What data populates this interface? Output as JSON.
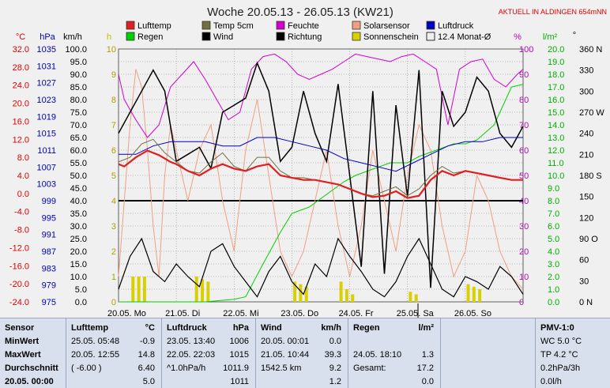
{
  "title": "Woche 20.05.13 - 26.05.13 (KW21)",
  "subtitle": "AKTUELL IN ALDINGEN 654mNN",
  "colors": {
    "lufttemp": "#e02020",
    "temp5cm": "#707040",
    "feuchte": "#d000d0",
    "solarsensor": "#f0a080",
    "luftdruck": "#0000c0",
    "regen": "#00d000",
    "wind": "#000000",
    "richtung": "#000000",
    "sonnenschein": "#d8d000",
    "monat_avg": "#4040a0",
    "grid": "#808080",
    "axis_c": "#e00000",
    "axis_hpa": "#0000c0",
    "axis_kmh": "#000000",
    "axis_h": "#c0c000",
    "axis_pct": "#c000c0",
    "axis_lm2": "#00b000"
  },
  "legend": [
    {
      "label": "Lufttemp",
      "color": "#e02020"
    },
    {
      "label": "Temp 5cm",
      "color": "#707040"
    },
    {
      "label": "Feuchte",
      "color": "#d000d0"
    },
    {
      "label": "Solarsensor",
      "color": "#f0a080"
    },
    {
      "label": "Luftdruck",
      "color": "#0000c0"
    },
    {
      "label": "Regen",
      "color": "#00d000"
    },
    {
      "label": "Wind",
      "color": "#000000"
    },
    {
      "label": "Richtung",
      "color": "#000000"
    },
    {
      "label": "Sonnenschein",
      "color": "#d8d000"
    },
    {
      "label": "12.4 Monat-Ø",
      "color": "#4040a0"
    }
  ],
  "chart_data": {
    "type": "line",
    "axis_units": {
      "left1": "°C",
      "left2": "hPa",
      "left3": "km/h",
      "left4": "h",
      "right1": "%",
      "right2": "l/m²",
      "right3": "°"
    },
    "x_ticks": [
      "20.05. Mo",
      "21.05. Di",
      "22.05. Mi",
      "23.05. Do",
      "24.05. Fr",
      "25.05. Sa",
      "26.05. So"
    ],
    "axis_c": [
      "32.0",
      "28.0",
      "24.0",
      "20.0",
      "16.0",
      "12.0",
      "8.0",
      "4.0",
      "0.0",
      "-4.0",
      "-8.0",
      "-12.0",
      "-16.0",
      "-20.0",
      "-24.0"
    ],
    "axis_hpa": [
      "1035",
      "1031",
      "1027",
      "1023",
      "1019",
      "1015",
      "1011",
      "1007",
      "1003",
      "999",
      "995",
      "991",
      "987",
      "983",
      "979",
      "975"
    ],
    "axis_kmh": [
      "100.0",
      "95.0",
      "90.0",
      "85.0",
      "80.0",
      "75.0",
      "70.0",
      "65.0",
      "60.0",
      "55.0",
      "50.0",
      "45.0",
      "40.0",
      "35.0",
      "30.0",
      "25.0",
      "20.0",
      "15.0",
      "10.0",
      "5.0",
      "0.0"
    ],
    "axis_h": [
      "10",
      "9",
      "8",
      "7",
      "6",
      "5",
      "4",
      "3",
      "2",
      "1",
      "0"
    ],
    "axis_pct": [
      "100",
      "90",
      "80",
      "70",
      "60",
      "50",
      "40",
      "30",
      "20",
      "10",
      "0"
    ],
    "axis_lm2": [
      "20.0",
      "19.0",
      "18.0",
      "17.0",
      "16.0",
      "15.0",
      "14.0",
      "13.0",
      "12.0",
      "11.0",
      "10.0",
      "9.0",
      "8.0",
      "7.0",
      "6.0",
      "5.0",
      "4.0",
      "3.0",
      "2.0",
      "1.0",
      "0.0"
    ],
    "axis_dir": [
      "360 N",
      "330",
      "300",
      "270 W",
      "240",
      "210",
      "180 S",
      "150",
      "120",
      "90 O",
      "60",
      "30",
      "0 N"
    ],
    "x_range": [
      0,
      7
    ],
    "monat_avg_level_kmh": 40,
    "series": [
      {
        "name": "Lufttemp",
        "unit": "°C",
        "x": [
          0,
          0.1,
          0.3,
          0.5,
          0.7,
          0.9,
          1.0,
          1.2,
          1.4,
          1.6,
          1.8,
          2.0,
          2.2,
          2.4,
          2.6,
          2.8,
          3.0,
          3.2,
          3.4,
          3.6,
          3.8,
          4.0,
          4.2,
          4.4,
          4.6,
          4.8,
          5.0,
          5.2,
          5.4,
          5.6,
          5.8,
          6.0,
          6.2,
          6.4,
          6.6,
          6.8,
          7.0
        ],
        "y": [
          6.5,
          6.0,
          8.0,
          9.5,
          8.5,
          7.0,
          6.5,
          5.0,
          4.0,
          5.5,
          6.5,
          5.5,
          5.0,
          6.0,
          6.5,
          4.0,
          3.5,
          3.0,
          3.0,
          2.5,
          2.0,
          1.0,
          0.0,
          -0.8,
          -0.5,
          0.5,
          -1.0,
          -0.5,
          3.0,
          5.0,
          4.0,
          5.0,
          4.5,
          4.0,
          3.5,
          3.0,
          3.0
        ]
      },
      {
        "name": "Temp 5cm",
        "unit": "°C",
        "x": [
          0,
          0.2,
          0.4,
          0.6,
          0.8,
          1.0,
          1.2,
          1.4,
          1.6,
          1.8,
          2.0,
          2.2,
          2.4,
          2.6,
          2.8,
          3.0,
          3.2,
          3.4,
          3.6,
          3.8,
          4.0,
          4.2,
          4.4,
          4.6,
          4.8,
          5.0,
          5.2,
          5.4,
          5.6,
          5.8,
          6.0,
          6.2,
          6.4,
          6.6,
          6.8,
          7.0
        ],
        "y": [
          7.0,
          8.0,
          11.0,
          12.0,
          9.0,
          7.0,
          5.0,
          4.5,
          7.0,
          9.0,
          6.0,
          5.0,
          8.0,
          8.0,
          5.0,
          3.5,
          3.5,
          3.0,
          2.5,
          2.0,
          1.0,
          0.0,
          -0.5,
          0.5,
          1.5,
          -0.5,
          1.0,
          4.0,
          6.0,
          4.5,
          5.0,
          4.5,
          4.0,
          3.5,
          3.0,
          3.0
        ]
      },
      {
        "name": "Feuchte",
        "unit": "%",
        "x": [
          0,
          0.1,
          0.3,
          0.5,
          0.7,
          0.9,
          1.1,
          1.3,
          1.5,
          1.7,
          1.9,
          2.1,
          2.3,
          2.5,
          2.7,
          2.9,
          3.1,
          3.3,
          3.5,
          3.7,
          3.9,
          4.1,
          4.3,
          4.5,
          4.7,
          4.9,
          5.1,
          5.3,
          5.5,
          5.7,
          5.9,
          6.1,
          6.3,
          6.5,
          6.7,
          6.9,
          7.0
        ],
        "y": [
          90,
          80,
          72,
          65,
          70,
          85,
          90,
          95,
          88,
          80,
          72,
          75,
          92,
          97,
          98,
          95,
          90,
          88,
          90,
          92,
          95,
          98,
          97,
          96,
          95,
          97,
          98,
          95,
          92,
          70,
          92,
          95,
          96,
          88,
          85,
          90,
          92
        ]
      },
      {
        "name": "Solarsensor",
        "unit": "%",
        "x": [
          0,
          0.1,
          0.2,
          0.3,
          0.4,
          0.5,
          0.6,
          0.7,
          0.8,
          0.9,
          1.0,
          1.2,
          1.4,
          1.6,
          1.8,
          2.0,
          2.2,
          2.4,
          2.6,
          2.8,
          3.0,
          3.2,
          3.4,
          3.6,
          3.8,
          4.0,
          4.2,
          4.4,
          4.6,
          4.8,
          5.0,
          5.2,
          5.4,
          5.6,
          5.8,
          6.0,
          6.2,
          6.4,
          6.6,
          6.8,
          7.0
        ],
        "y": [
          10,
          40,
          70,
          92,
          85,
          60,
          30,
          10,
          50,
          70,
          60,
          40,
          60,
          70,
          40,
          20,
          60,
          80,
          50,
          20,
          10,
          20,
          40,
          60,
          30,
          10,
          30,
          60,
          40,
          20,
          50,
          70,
          60,
          30,
          10,
          20,
          50,
          40,
          20,
          10,
          5
        ]
      },
      {
        "name": "Luftdruck",
        "unit": "hPa",
        "x": [
          0,
          0.3,
          0.6,
          0.9,
          1.2,
          1.5,
          1.8,
          2.1,
          2.4,
          2.7,
          3.0,
          3.3,
          3.6,
          3.9,
          4.2,
          4.5,
          4.8,
          5.1,
          5.4,
          5.7,
          6.0,
          6.3,
          6.6,
          7.0
        ],
        "y": [
          1010,
          1010,
          1012,
          1013,
          1013,
          1013,
          1012,
          1012,
          1014,
          1014,
          1013,
          1012,
          1011,
          1009,
          1008,
          1007,
          1006,
          1008,
          1010,
          1012,
          1013,
          1013,
          1014,
          1014
        ]
      },
      {
        "name": "Regen",
        "unit": "l/m²",
        "x": [
          0,
          1.0,
          1.5,
          2.0,
          2.2,
          2.5,
          2.8,
          3.0,
          3.3,
          3.6,
          3.9,
          4.1,
          4.4,
          4.7,
          5.0,
          5.2,
          5.5,
          5.8,
          6.0,
          6.2,
          6.5,
          6.8,
          7.0
        ],
        "y": [
          0,
          0,
          0,
          0.2,
          0.4,
          3.0,
          5.5,
          7.0,
          7.5,
          8.5,
          9.5,
          10.0,
          10.5,
          11.0,
          11.0,
          11.5,
          12.0,
          12.5,
          12.5,
          12.8,
          14.0,
          17.0,
          17.2
        ]
      },
      {
        "name": "Wind",
        "unit": "km/h",
        "x": [
          0,
          0.2,
          0.4,
          0.6,
          0.8,
          1.0,
          1.2,
          1.4,
          1.6,
          1.8,
          2.0,
          2.2,
          2.4,
          2.6,
          2.8,
          3.0,
          3.2,
          3.4,
          3.6,
          3.8,
          4.0,
          4.2,
          4.4,
          4.6,
          4.8,
          5.0,
          5.2,
          5.4,
          5.6,
          5.8,
          6.0,
          6.2,
          6.4,
          6.6,
          6.8,
          7.0
        ],
        "y": [
          5,
          18,
          25,
          12,
          8,
          15,
          10,
          6,
          20,
          23,
          14,
          8,
          2,
          12,
          18,
          8,
          3,
          15,
          10,
          25,
          18,
          12,
          5,
          2,
          8,
          18,
          25,
          15,
          5,
          2,
          10,
          8,
          5,
          14,
          10,
          3
        ]
      },
      {
        "name": "Richtung",
        "unit": "°",
        "x": [
          0,
          0.2,
          0.4,
          0.6,
          0.8,
          1.0,
          1.2,
          1.4,
          1.6,
          1.8,
          2.0,
          2.2,
          2.4,
          2.6,
          2.8,
          3.0,
          3.2,
          3.4,
          3.6,
          3.8,
          4.0,
          4.2,
          4.4,
          4.6,
          4.8,
          5.0,
          5.2,
          5.4,
          5.6,
          5.8,
          6.0,
          6.2,
          6.4,
          6.6,
          6.8,
          7.0
        ],
        "y": [
          240,
          270,
          300,
          330,
          300,
          200,
          210,
          220,
          190,
          270,
          280,
          290,
          340,
          300,
          200,
          220,
          300,
          240,
          200,
          310,
          180,
          50,
          300,
          40,
          280,
          150,
          330,
          20,
          300,
          250,
          270,
          320,
          300,
          240,
          220,
          250
        ]
      }
    ],
    "sonnenschein_bars": {
      "unit": "h",
      "x": [
        0.25,
        0.35,
        0.45,
        1.35,
        1.45,
        1.55,
        3.05,
        3.15,
        3.25,
        3.85,
        3.95,
        4.05,
        5.05,
        5.15,
        6.05,
        6.15,
        6.25
      ],
      "values": [
        1.0,
        1.0,
        1.0,
        1.0,
        0.9,
        0.8,
        0.8,
        0.7,
        0.6,
        0.8,
        0.5,
        0.3,
        0.4,
        0.3,
        0.7,
        0.6,
        0.5
      ]
    }
  },
  "stats": {
    "sensor": {
      "header": "Sensor",
      "rows": [
        "MinWert",
        "MaxWert",
        "Durchschnitt",
        "20.05. 00:00"
      ]
    },
    "lufttemp": {
      "header": "Lufttemp",
      "unit": "°C",
      "rows": [
        {
          "left": "25.05.  05:48",
          "value": "-0.9"
        },
        {
          "left": "20.05.  12:55",
          "value": "14.8"
        },
        {
          "left": "( -6.00 )",
          "value": "6.40"
        },
        {
          "left": "",
          "value": "5.0"
        }
      ]
    },
    "luftdruck": {
      "header": "Luftdruck",
      "unit": "hPa",
      "rows": [
        {
          "left": "23.05.  13:40",
          "value": "1006"
        },
        {
          "left": "22.05.  22:03",
          "value": "1015"
        },
        {
          "left": "^1.0hPa/h",
          "value": "1011.9"
        },
        {
          "left": "",
          "value": "1011"
        }
      ]
    },
    "wind": {
      "header": "Wind",
      "unit": "km/h",
      "rows": [
        {
          "left": "20.05.  00:01",
          "value": "0.0"
        },
        {
          "left": "21.05.  10:44",
          "value": "39.3"
        },
        {
          "left": "1542.5 km",
          "value": "9.2"
        },
        {
          "left": "",
          "value": "1.2"
        }
      ]
    },
    "regen": {
      "header": "Regen",
      "unit": "l/m²",
      "rows": [
        {
          "left": "",
          "value": ""
        },
        {
          "left": "24.05.  18:10",
          "value": "1.3"
        },
        {
          "left": "Gesamt:",
          "value": "17.2"
        },
        {
          "left": "",
          "value": "0.0"
        }
      ]
    },
    "pmv": {
      "header": "PMV-1:0",
      "rows": [
        "WC 5.0 °C",
        "TP 4.2 °C",
        "0.2hPa/3h",
        "0.0l/h"
      ]
    }
  }
}
